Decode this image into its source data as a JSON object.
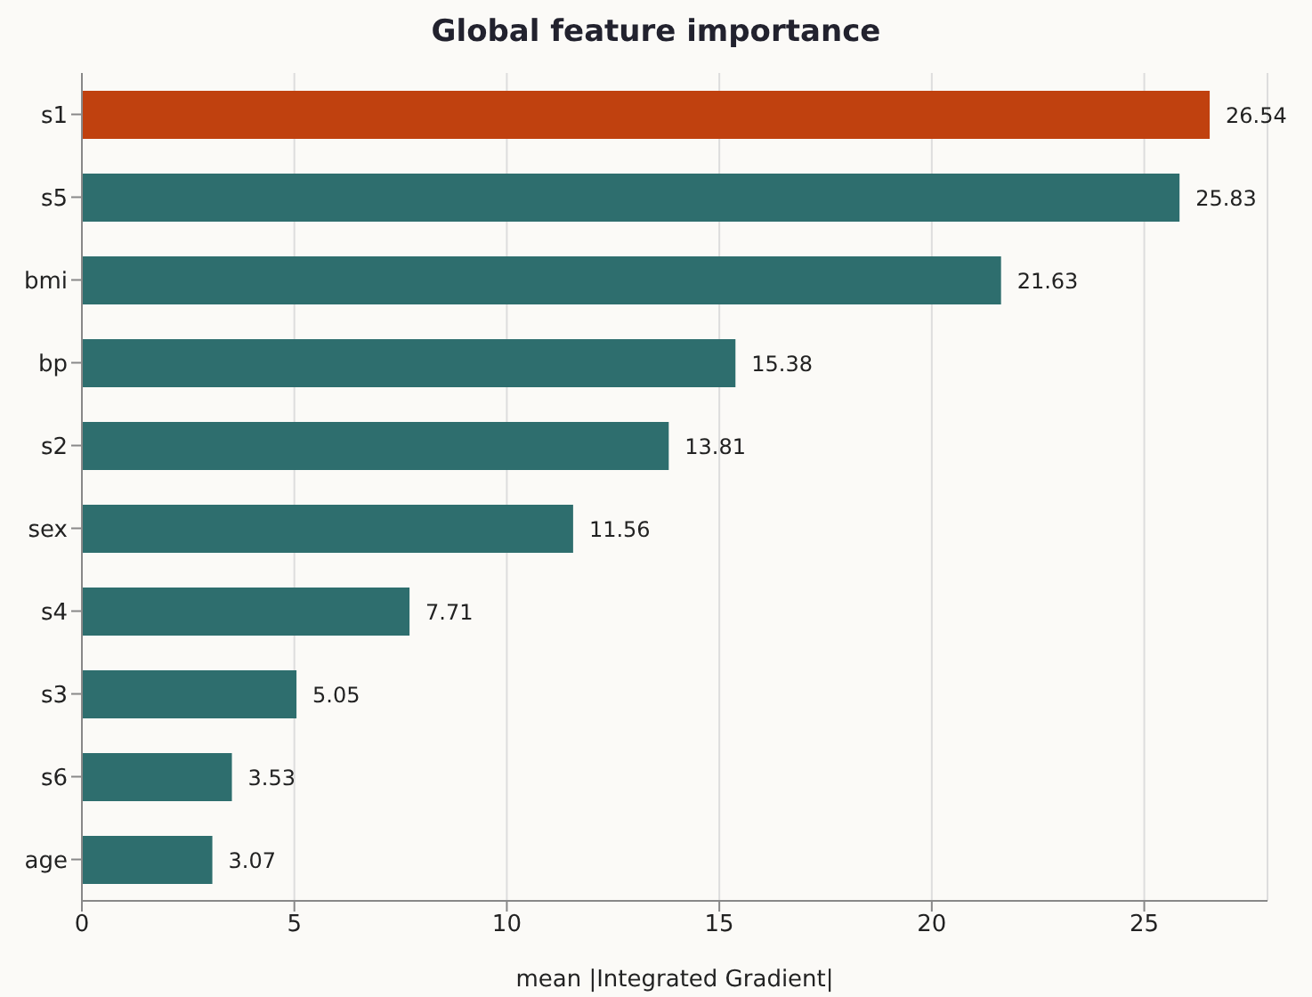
{
  "chart_data": {
    "type": "bar",
    "orientation": "horizontal",
    "title": "Global feature importance",
    "xlabel": "mean |Integrated Gradient|",
    "categories": [
      "s1",
      "s5",
      "bmi",
      "bp",
      "s2",
      "sex",
      "s4",
      "s3",
      "s6",
      "age"
    ],
    "values": [
      26.54,
      25.83,
      21.63,
      15.38,
      13.81,
      11.56,
      7.71,
      5.05,
      3.53,
      3.07
    ],
    "colors": [
      "#c0410f",
      "#2e6e6e",
      "#2e6e6e",
      "#2e6e6e",
      "#2e6e6e",
      "#2e6e6e",
      "#2e6e6e",
      "#2e6e6e",
      "#2e6e6e",
      "#2e6e6e"
    ],
    "xlim": [
      0,
      27.9
    ],
    "xticks": [
      0,
      5,
      10,
      15,
      20,
      25
    ],
    "grid": "x",
    "data_labels": true
  }
}
